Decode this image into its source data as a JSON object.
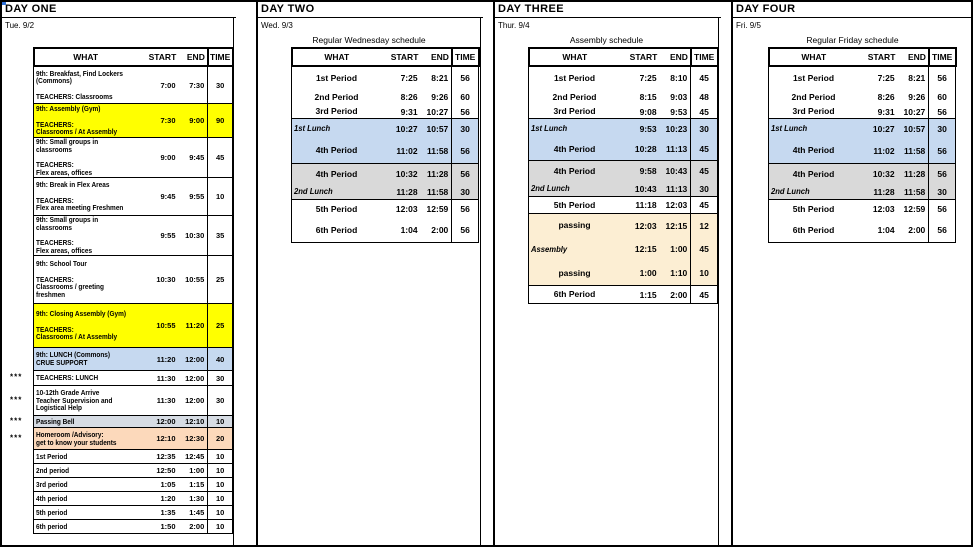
{
  "window": {
    "edge_color": "#2f71d8"
  },
  "colors": {
    "white": "#FFFFFF",
    "yellow": "#FFFF00",
    "blue": "#C6D9F0",
    "gray": "#D9D9D9",
    "bluegray": "#D6DCE4",
    "peach": "#FCD9BB",
    "cream": "#FCEED3"
  },
  "table_headers": [
    "WHAT",
    "START",
    "END",
    "TIME"
  ],
  "panels": [
    {
      "title": "DAY ONE",
      "date": "Tue. 9/2",
      "subtitle": "",
      "rows": [
        {
          "what": "9th: Breakfast, Find Lockers\n(Commons)\n\nTEACHERS: Classrooms",
          "start": "7:00",
          "end": "7:30",
          "time": "30",
          "bg": "white"
        },
        {
          "what": "9th: Assembly (Gym)\n\nTEACHERS:\nClassrooms / At Assembly",
          "start": "7:30",
          "end": "9:00",
          "time": "90",
          "bg": "yellow"
        },
        {
          "what": "9th: Small groups in\nclassrooms\n\nTEACHERS:\nFlex areas, offices",
          "start": "9:00",
          "end": "9:45",
          "time": "45",
          "bg": "white"
        },
        {
          "what": "9th: Break in Flex Areas\n\nTEACHERS:\nFlex area meeting Freshmen",
          "start": "9:45",
          "end": "9:55",
          "time": "10",
          "bg": "white"
        },
        {
          "what": "9th: Small groups in\nclassrooms\n\nTEACHERS:\nFlex areas, offices",
          "start": "9:55",
          "end": "10:30",
          "time": "35",
          "bg": "white"
        },
        {
          "what": "9th: School Tour\n\nTEACHERS:\nClassrooms / greeting freshmen",
          "start": "10:30",
          "end": "10:55",
          "time": "25",
          "bg": "white"
        },
        {
          "what": "9th: Closing Assembly (Gym)\n\nTEACHERS:\nClassrooms / At Assembly",
          "start": "10:55",
          "end": "11:20",
          "time": "25",
          "bg": "yellow"
        },
        {
          "what": "9th: LUNCH (Commons)\nCRUE SUPPORT",
          "start": "11:20",
          "end": "12:00",
          "time": "40",
          "bg": "blue"
        },
        {
          "what": "TEACHERS: LUNCH",
          "start": "11:30",
          "end": "12:00",
          "time": "30",
          "bg": "white",
          "marker": "***"
        },
        {
          "what": "10-12th Grade Arrive\nTeacher Supervision and\nLogistical Help",
          "start": "11:30",
          "end": "12:00",
          "time": "30",
          "bg": "white",
          "marker": "***"
        },
        {
          "what": "Passing Bell",
          "start": "12:00",
          "end": "12:10",
          "time": "10",
          "bg": "bluegray",
          "marker": "***"
        },
        {
          "what": "Homeroom /Advisory:\nget to know your students",
          "start": "12:10",
          "end": "12:30",
          "time": "20",
          "bg": "peach",
          "marker": "***"
        },
        {
          "what": "1st Period",
          "start": "12:35",
          "end": "12:45",
          "time": "10",
          "bg": "white"
        },
        {
          "what": "2nd period",
          "start": "12:50",
          "end": "1:00",
          "time": "10",
          "bg": "white"
        },
        {
          "what": "3rd period",
          "start": "1:05",
          "end": "1:15",
          "time": "10",
          "bg": "white"
        },
        {
          "what": "4th period",
          "start": "1:20",
          "end": "1:30",
          "time": "10",
          "bg": "white"
        },
        {
          "what": "5th period",
          "start": "1:35",
          "end": "1:45",
          "time": "10",
          "bg": "white"
        },
        {
          "what": "6th period",
          "start": "1:50",
          "end": "2:00",
          "time": "10",
          "bg": "white"
        }
      ]
    },
    {
      "title": "DAY TWO",
      "date": "Wed. 9/3",
      "subtitle": "Regular Wednesday schedule",
      "rows": [
        {
          "what": "1st Period",
          "start": "7:25",
          "end": "8:21",
          "time": "56",
          "bg": "white",
          "sec": 0,
          "center": true
        },
        {
          "what": "2nd Period",
          "start": "8:26",
          "end": "9:26",
          "time": "60",
          "bg": "white",
          "sec": 0,
          "center": true
        },
        {
          "what": "3rd Period",
          "start": "9:31",
          "end": "10:27",
          "time": "56",
          "bg": "white",
          "sec": 0,
          "center": true
        },
        {
          "what": "1st Lunch",
          "start": "10:27",
          "end": "10:57",
          "time": "30",
          "bg": "blue",
          "sec": 1,
          "italic": true
        },
        {
          "what": "4th Period",
          "start": "11:02",
          "end": "11:58",
          "time": "56",
          "bg": "blue",
          "sec": 1,
          "center": true
        },
        {
          "what": "4th Period",
          "start": "10:32",
          "end": "11:28",
          "time": "56",
          "bg": "gray",
          "sec": 2,
          "center": true
        },
        {
          "what": "2nd Lunch",
          "start": "11:28",
          "end": "11:58",
          "time": "30",
          "bg": "gray",
          "sec": 2,
          "italic": true
        },
        {
          "what": "5th Period",
          "start": "12:03",
          "end": "12:59",
          "time": "56",
          "bg": "white",
          "sec": 3,
          "center": true
        },
        {
          "what": "6th Period",
          "start": "1:04",
          "end": "2:00",
          "time": "56",
          "bg": "white",
          "sec": 3,
          "center": true
        }
      ]
    },
    {
      "title": "DAY THREE",
      "date": "Thur. 9/4",
      "subtitle": "Assembly schedule",
      "rows": [
        {
          "what": "1st Period",
          "start": "7:25",
          "end": "8:10",
          "time": "45",
          "bg": "white",
          "sec": 0,
          "center": true
        },
        {
          "what": "2nd Period",
          "start": "8:15",
          "end": "9:03",
          "time": "48",
          "bg": "white",
          "sec": 0,
          "center": true
        },
        {
          "what": "3rd Period",
          "start": "9:08",
          "end": "9:53",
          "time": "45",
          "bg": "white",
          "sec": 0,
          "center": true
        },
        {
          "what": "1st Lunch",
          "start": "9:53",
          "end": "10:23",
          "time": "30",
          "bg": "blue",
          "sec": 1,
          "italic": true
        },
        {
          "what": "4th Period",
          "start": "10:28",
          "end": "11:13",
          "time": "45",
          "bg": "blue",
          "sec": 1,
          "center": true
        },
        {
          "what": "4th Period",
          "start": "9:58",
          "end": "10:43",
          "time": "45",
          "bg": "gray",
          "sec": 2,
          "center": true
        },
        {
          "what": "2nd Lunch",
          "start": "10:43",
          "end": "11:13",
          "time": "30",
          "bg": "gray",
          "sec": 2,
          "italic": true
        },
        {
          "what": "5th Period",
          "start": "11:18",
          "end": "12:03",
          "time": "45",
          "bg": "white",
          "sec": 3,
          "center": true
        },
        {
          "what": "passing",
          "start": "12:03",
          "end": "12:15",
          "time": "12",
          "bg": "cream",
          "sec": 4,
          "center": true
        },
        {
          "what": "Assembly",
          "start": "12:15",
          "end": "1:00",
          "time": "45",
          "bg": "cream",
          "sec": 4,
          "italic": true
        },
        {
          "what": "passing",
          "start": "1:00",
          "end": "1:10",
          "time": "10",
          "bg": "cream",
          "sec": 4,
          "center": true
        },
        {
          "what": "6th Period",
          "start": "1:15",
          "end": "2:00",
          "time": "45",
          "bg": "white",
          "sec": 5,
          "center": true
        }
      ]
    },
    {
      "title": "DAY FOUR",
      "date": "Fri. 9/5",
      "subtitle": "Regular Friday schedule",
      "rows": [
        {
          "what": "1st Period",
          "start": "7:25",
          "end": "8:21",
          "time": "56",
          "bg": "white",
          "sec": 0,
          "center": true
        },
        {
          "what": "2nd Period",
          "start": "8:26",
          "end": "9:26",
          "time": "60",
          "bg": "white",
          "sec": 0,
          "center": true
        },
        {
          "what": "3rd Period",
          "start": "9:31",
          "end": "10:27",
          "time": "56",
          "bg": "white",
          "sec": 0,
          "center": true
        },
        {
          "what": "1st Lunch",
          "start": "10:27",
          "end": "10:57",
          "time": "30",
          "bg": "blue",
          "sec": 1,
          "italic": true
        },
        {
          "what": "4th Period",
          "start": "11:02",
          "end": "11:58",
          "time": "56",
          "bg": "blue",
          "sec": 1,
          "center": true
        },
        {
          "what": "4th Period",
          "start": "10:32",
          "end": "11:28",
          "time": "56",
          "bg": "gray",
          "sec": 2,
          "center": true
        },
        {
          "what": "2nd Lunch",
          "start": "11:28",
          "end": "11:58",
          "time": "30",
          "bg": "gray",
          "sec": 2,
          "italic": true
        },
        {
          "what": "5th Period",
          "start": "12:03",
          "end": "12:59",
          "time": "56",
          "bg": "white",
          "sec": 3,
          "center": true
        },
        {
          "what": "6th Period",
          "start": "1:04",
          "end": "2:00",
          "time": "56",
          "bg": "white",
          "sec": 3,
          "center": true
        }
      ]
    }
  ]
}
